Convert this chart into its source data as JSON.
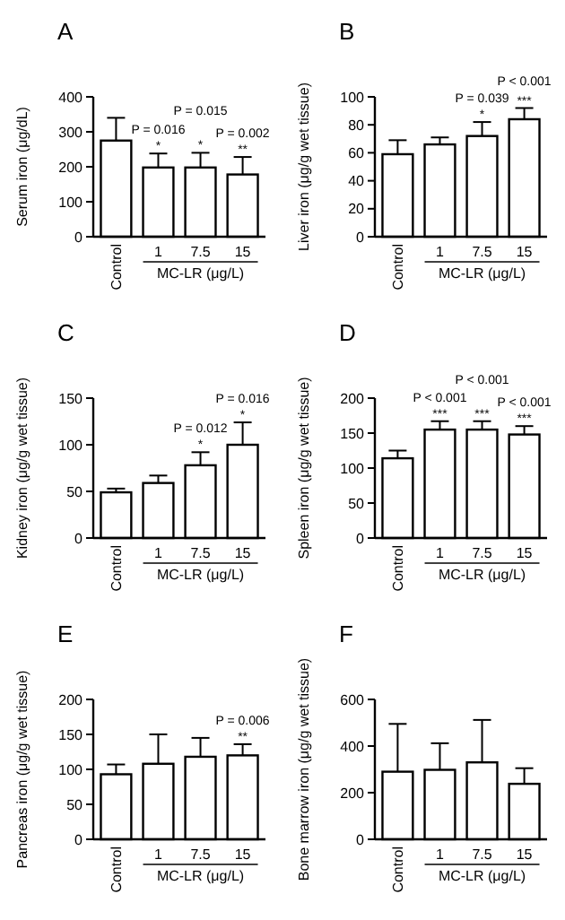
{
  "chart_data": [
    {
      "type": "bar",
      "title": "A",
      "ylabel": "Serum iron (μg/dL)",
      "xlabel": "MC-LR (μg/L)",
      "categories": [
        "Control",
        "1",
        "7.5",
        "15"
      ],
      "values": [
        275,
        198,
        198,
        178
      ],
      "errors": [
        [
          275,
          340
        ],
        [
          198,
          238
        ],
        [
          198,
          240
        ],
        [
          178,
          228
        ]
      ],
      "color": "#ffffff",
      "ylim": [
        0,
        400
      ],
      "yticks": [
        0,
        100,
        200,
        300,
        400
      ],
      "annotations": [
        {
          "text": "*",
          "x": "1",
          "y": 238
        },
        {
          "text": "P = 0.016",
          "x": "1",
          "y": 238
        },
        {
          "text": "*",
          "x": "7.5",
          "y": 240
        },
        {
          "text": "P = 0.015",
          "x": "7.5",
          "y": 240
        },
        {
          "text": "**",
          "x": "15",
          "y": 228
        },
        {
          "text": "P = 0.002",
          "x": "15",
          "y": 228
        }
      ]
    },
    {
      "type": "bar",
      "title": "B",
      "ylabel": "Liver iron (μg/g wet tissue)",
      "xlabel": "MC-LR (μg/L)",
      "categories": [
        "Control",
        "1",
        "7.5",
        "15"
      ],
      "values": [
        59,
        66,
        72,
        84
      ],
      "errors": [
        [
          59,
          69
        ],
        [
          66,
          71
        ],
        [
          72,
          82
        ],
        [
          84,
          92
        ]
      ],
      "color": "#ffffff",
      "ylim": [
        0,
        100
      ],
      "yticks": [
        0,
        20,
        40,
        60,
        80,
        100
      ],
      "annotations": [
        {
          "text": "*",
          "x": "7.5",
          "y": 82
        },
        {
          "text": "P = 0.039",
          "x": "7.5",
          "y": 82
        },
        {
          "text": "***",
          "x": "15",
          "y": 92
        },
        {
          "text": "P < 0.001",
          "x": "15",
          "y": 92
        }
      ]
    },
    {
      "type": "bar",
      "title": "C",
      "ylabel": "Kidney iron (μg/g wet tissue)",
      "xlabel": "MC-LR (μg/L)",
      "categories": [
        "Control",
        "1",
        "7.5",
        "15"
      ],
      "values": [
        49,
        59,
        78,
        100
      ],
      "errors": [
        [
          49,
          53
        ],
        [
          59,
          67
        ],
        [
          78,
          92
        ],
        [
          100,
          124
        ]
      ],
      "color": "#ffffff",
      "ylim": [
        0,
        150
      ],
      "yticks": [
        0,
        50,
        100,
        150
      ],
      "annotations": [
        {
          "text": "*",
          "x": "7.5",
          "y": 92
        },
        {
          "text": "P = 0.012",
          "x": "7.5",
          "y": 92
        },
        {
          "text": "*",
          "x": "15",
          "y": 124
        },
        {
          "text": "P = 0.016",
          "x": "15",
          "y": 124
        }
      ]
    },
    {
      "type": "bar",
      "title": "D",
      "ylabel": "Spleen iron (μg/g wet tissue)",
      "xlabel": "MC-LR (μg/L)",
      "categories": [
        "Control",
        "1",
        "7.5",
        "15"
      ],
      "values": [
        114,
        155,
        155,
        148
      ],
      "errors": [
        [
          114,
          125
        ],
        [
          155,
          167
        ],
        [
          155,
          167
        ],
        [
          148,
          160
        ]
      ],
      "color": "#ffffff",
      "ylim": [
        0,
        200
      ],
      "yticks": [
        0,
        50,
        100,
        150,
        200
      ],
      "annotations": [
        {
          "text": "***",
          "x": "1",
          "y": 167
        },
        {
          "text": "P < 0.001",
          "x": "1",
          "y": 167
        },
        {
          "text": "***",
          "x": "7.5",
          "y": 167
        },
        {
          "text": "P < 0.001",
          "x": "7.5",
          "y": 167
        },
        {
          "text": "***",
          "x": "15",
          "y": 160
        },
        {
          "text": "P < 0.001",
          "x": "15",
          "y": 160
        }
      ]
    },
    {
      "type": "bar",
      "title": "E",
      "ylabel": "Pancreas iron (μg/g wet tissue)",
      "xlabel": "MC-LR (μg/L)",
      "categories": [
        "Control",
        "1",
        "7.5",
        "15"
      ],
      "values": [
        93,
        108,
        118,
        120
      ],
      "errors": [
        [
          93,
          107
        ],
        [
          108,
          150
        ],
        [
          118,
          145
        ],
        [
          120,
          136
        ]
      ],
      "color": "#ffffff",
      "ylim": [
        0,
        200
      ],
      "yticks": [
        0,
        50,
        100,
        150,
        200
      ],
      "annotations": [
        {
          "text": "**",
          "x": "15",
          "y": 136
        },
        {
          "text": "P = 0.006",
          "x": "15",
          "y": 136
        }
      ]
    },
    {
      "type": "bar",
      "title": "F",
      "ylabel": "Bone marrow iron (μg/g wet tissue)",
      "xlabel": "MC-LR (μg/L)",
      "categories": [
        "Control",
        "1",
        "7.5",
        "15"
      ],
      "values": [
        290,
        298,
        330,
        238
      ],
      "errors": [
        [
          290,
          495
        ],
        [
          298,
          412
        ],
        [
          330,
          512
        ],
        [
          238,
          305
        ]
      ],
      "color": "#ffffff",
      "ylim": [
        0,
        600
      ],
      "yticks": [
        0,
        200,
        400,
        600
      ]
    }
  ]
}
